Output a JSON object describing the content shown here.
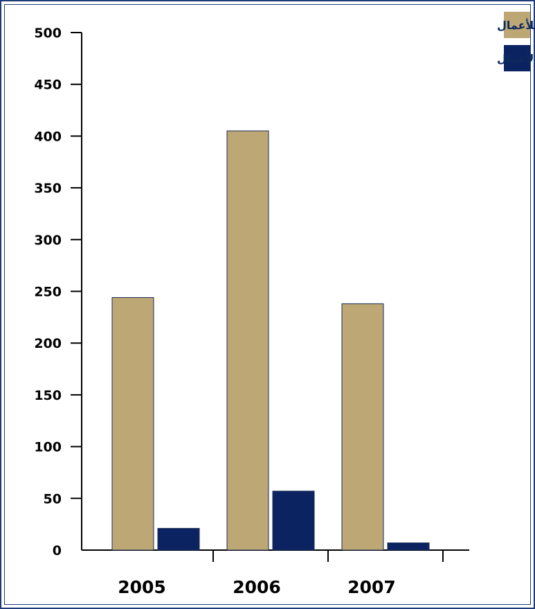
{
  "chart_data": {
    "type": "bar",
    "title": "",
    "xlabel": "",
    "ylabel": "",
    "categories": [
      "2005",
      "2006",
      "2007"
    ],
    "series": [
      {
        "name": "معجم أبو غزالة للأعمال",
        "color": "#bda775",
        "values": [
          244,
          405,
          238
        ]
      },
      {
        "name": "دليل دوائر الأعمال",
        "color": "#0b2461",
        "values": [
          21,
          57,
          7
        ]
      }
    ],
    "ylim": [
      0,
      500
    ],
    "yticks": [
      0,
      50,
      100,
      150,
      200,
      250,
      300,
      350,
      400,
      450,
      500
    ],
    "grid": false,
    "legend": "top-right"
  }
}
